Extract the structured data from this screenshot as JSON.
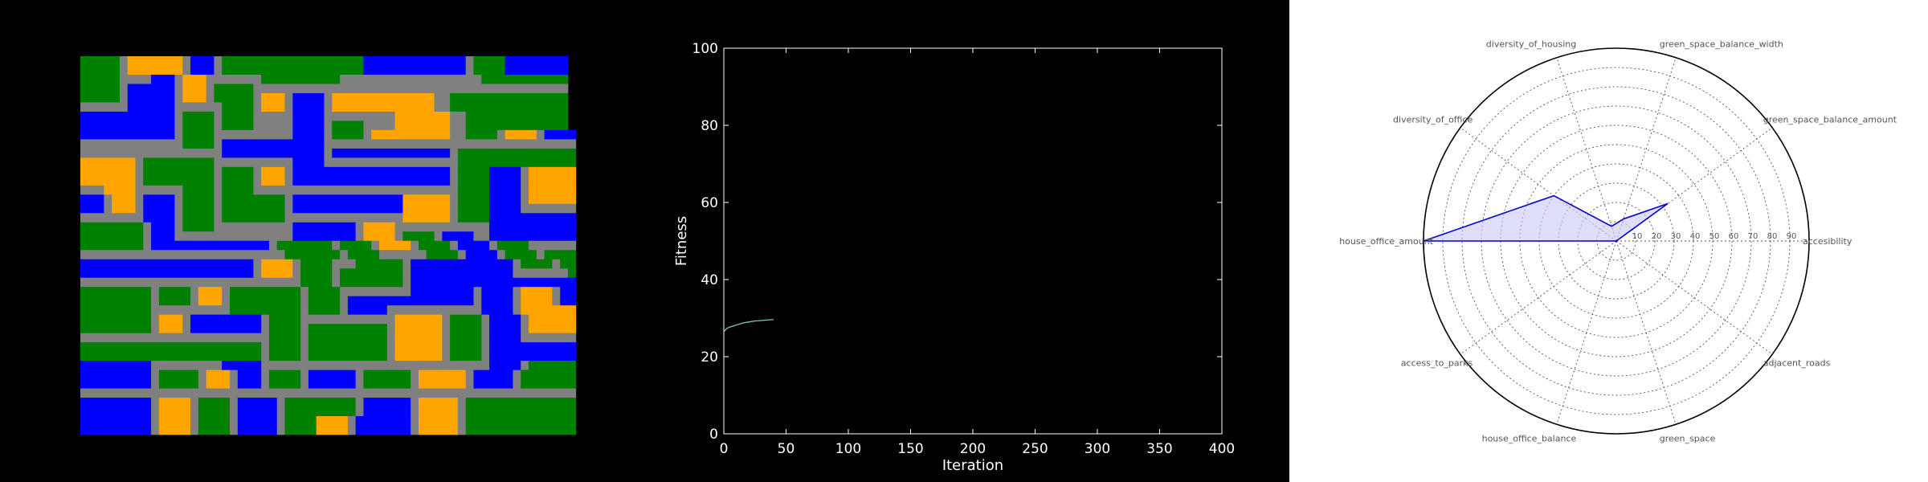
{
  "colors": {
    "background": "#000000",
    "radar_background": "#ffffff",
    "road": "#808080",
    "green": "#008000",
    "office": "#0000ff",
    "housing": "#ffa500",
    "fitness_line": "#7fc6a4",
    "radar_line": "#0000cc",
    "radar_fill": "#c8c8f5"
  },
  "grid_map": {
    "legend": {
      "G": "road",
      "V": "green",
      "B": "office",
      "O": "housing"
    },
    "rows": [
      "VVVVVGOOOOOOOGBBBGVVVVVVVVVVVVVVVVVVBBBBBBBBBBBBBGVVVVBBBBBBBB",
      "VVVVVGOOOOOOOGBBBGVVVVVVVVVVVVVVVVVVBBBBBBBBBBBBBGVVVVBBBBBBBB",
      "VVVVVGGGGBBBGOOOGGGGGGGVVVVVVVVVVGGGGGGGGGGGGGGGGGGVVVVVVVVVVV",
      "VVVVVGBBBBBBGOOOGVVVVVGGGGGGGGGGGGGGGGGGGGGGGGGGGGGGGGGGGGGGGG",
      "VVVVVGBBBBBBGOOOGVVVVVGOOOGBBBBGOOOOOOOOOOOOOGGVVVVVVVVVVVVVVV",
      "GGGGGGBBBBBBGGGGGGVVVVGOOOGBBBBGOOOOOOOOOOOOOGGVVVVVVVVVVVVVVV",
      "BBBBBBBBBBBBGVVVVGVVVVGGGGGBBBBGGGGGGGGGOOOOOOOGGVVVVVVVVVVVVV",
      "BBBBBBBBBBBBGVVVVGVVVVGGGGGBBBBGVVVVGGGGOOOOOOOGGVVVVVVVVVVVVV",
      "BBBBBBBBBBBBGVVVVGGGGGGGGGGBBBBGVVVVGOOOOOOOOOOGGVVVVGOOOOGBBBB",
      "GGGGGGGGGGGGGVVVVGBBBBBBBBBBBBBGGGGGGGGGGGGGGGGGGGGGGGGGGGGGGGG",
      "GGGGGGGGGGGGGGGGGGBBBBBBBBBBBBBGBBBBBBBBBBBBBBBGVVVVVVVVVVVVVVV",
      "OOOOOOOGVVVVVVVVVGGGGGGGGGGBBBBGGGGGGGGGGGGGGGGGVVVVVVVVVVVVVVV",
      "OOOOOOOGVVVVVVVVVGVVVVGOOOGBBBBBBBBBBBBBBBBBBBBGVVVVBBBBGOOOOOO",
      "OOOOOOOGVVVVVVVVVGVVVVGOOOGBBBBBBBBBBBBBBBBBBBBGVVVVBBBBGOOOOOO",
      "GGGOOOOGGGGGGVVVVGVVVVGGGGGGGGGGGGGGGGGGGGGGGGGGVVVVBBBBGOOOOOO",
      "BBBGOOOGBBBBGVVVVGVVVVVVVVGBBBBBBBBBBBBBBOOOOOOGVVVVBBBBGOOOOOO",
      "BBBGOOOGBBBBGVVVVGVVVVVVVVGBBBBBBBBBBBBBBOOOOOOGVVVVBBBBGGGGGGG",
      "GGGGGGGGBBBBGVVVVGVVVVVVVVGGGGGGGGGGGGGGGOOOOOOGVVVVBBBBBBBBBBB",
      "VVVVVVVVGBBBGVVVVGGGGGGGGGGBBBBBBBBGOOOOGGGGGGGGGGGGBBBBBBBBBBB",
      "VVVVVVVVGBBBGGGGGGGGGGGGGGGBBBBBBBBGOOOOGVVVVGBBBBGGBBBBBBBBBBB",
      "VVVVVVVVGBBBBBBBBBBBBBBBGVVVVVVVGVVVVGOOOOGVVVVGBBBBGVVVVGGGGGG",
      "GGGGGGGGGGGGGGGGGGGGGGGGGGVVVVVVVGVVVVGGGGGGVVVVGBBBBGVVVVGVVVV",
      "BBBBBBBBBBBBBBBBBBBBBBGOOOOGVVVVGGGVVVVVVGBBBBBBBBBBBBBGVVVVGVV",
      "BBBBBBBBBBBBBBBBBBBBBBGOOOOGVVVVGVVVVVVVVGBBBBBBBBBBBBBGGGGGGGV",
      "GGGGGGGGGGGGGGGGGGGGGGGGGGGGVVVVGVVVVVVVVGBBBBBBBBBBBBBBBBBBBBB",
      "VVVVVVVVVGVVVVGOOOGVVVVVVVVVGVVVVGGGGGGGGGBBBBBBBBGBBBBGOOOOGBB",
      "VVVVVVVVVGVVVVGOOOGVVVVVVVVVGVVVVGBBBBBBBBBBBBBBBBGBBBBGOOOOGBB",
      "VVVVVVVVVGGGGGGGGGGVVVVVVVVVGVVVVGBBBBBGGGGGGGGGGGGBBBBGOOOOOOO",
      "VVVVVVVVVGOOOGBBBBBBBBBGVVVVGGGGGGGGGGGGOOOOOOGVVVVGBBBBGOOOOOO",
      "VVVVVVVVVGOOOGBBBBBBBBBGVVVVGVVVVVVVVVVGOOOOOOGVVVVGBBBBGOOOOOO",
      "GGGGGGGGGGGGGGGGGGGGGGGGVVVVGVVVVVVVVVVGOOOOOOGVVVVGBBBBGGGGGGG",
      "VVVVVVVVVVVVVVVVVVVVVVVGVVVVGVVVVVVVVVVGOOOOOOGVVVVGBBBBBBBBBBB",
      "VVVVVVVVVVVVVVVVVVVVVVVGVVVVGVVVVVVVVVVGOOOOOOGVVVVGBBBBBBBBBBB",
      "BBBBBBBBBGGGGGGGGGBBBBBGGGGGGGGGGGGGGGGGGGGGGGGGGGGGBBBBGVVVVVV",
      "BBBBBBBBBGVVVVVGOOOGBBBGVVVVGBBBBBBGVVVVVVGOOOOOOGBBBBBGVVVVVVV",
      "BBBBBBBBBGVVVVVGOOOGBBBGVVVVGBBBBBBGVVVVVVGOOOOOOGBBBBBGVVVVVVV",
      "GGGGGGGGGGGGGGGGGGGGGGGGGGGGGGGGGGGGGGGGGGGGGGGGGGGGGGGGGGGGGGG",
      "BBBBBBBBBGOOOOGVVVVGBBBBBGVVVVVVVVVGBBBBBBGOOOOOGVVVVVVVVVVVVVV",
      "BBBBBBBBBGOOOOGVVVVGBBBBBGVVVVVVVVVGBBBBBBGOOOOOGVVVVVVVVVVVVVV",
      "BBBBBBBBBGOOOOGVVVVGBBBBBGVVVVOOOOGBBBBBBBGOOOOOGVVVVVVVVVVVVVV",
      "BBBBBBBBBGOOOOGVVVVGBBBBBGVVVVOOOOGBBBBBBBGOOOOOGVVVVVVVVVVVVVV"
    ]
  },
  "chart_data": [
    {
      "type": "line",
      "xlabel": "Iteration",
      "ylabel": "Fitness",
      "xlim": [
        0,
        400
      ],
      "ylim": [
        0,
        100
      ],
      "xticks": [
        0,
        50,
        100,
        150,
        200,
        250,
        300,
        350,
        400
      ],
      "yticks": [
        0,
        20,
        40,
        60,
        80,
        100
      ],
      "grid": false,
      "x": [
        0,
        2,
        4,
        6,
        8,
        10,
        12,
        14,
        16,
        18,
        20,
        22,
        24,
        26,
        28,
        30,
        32,
        34,
        36,
        38,
        40
      ],
      "y": [
        26.5,
        27.2,
        27.6,
        27.8,
        28.0,
        28.2,
        28.4,
        28.6,
        28.8,
        28.9,
        29.0,
        29.1,
        29.2,
        29.3,
        29.3,
        29.4,
        29.4,
        29.5,
        29.5,
        29.6,
        29.6
      ]
    },
    {
      "type": "radar",
      "categories": [
        "accesibility",
        "green_space_balance_amount",
        "green_space_balance_width",
        "diversity_of_housing",
        "diversity_of_office",
        "house_office_amount",
        "access_to_parks",
        "house_office_balance",
        "green_space",
        "adjacent_roads"
      ],
      "tick_labels": [
        "10",
        "20",
        "30",
        "40",
        "50",
        "60",
        "70",
        "80",
        "90"
      ],
      "rmax": 100,
      "values": [
        0,
        33,
        12,
        8,
        40,
        100,
        0,
        0,
        0,
        0
      ],
      "grid": true
    }
  ]
}
